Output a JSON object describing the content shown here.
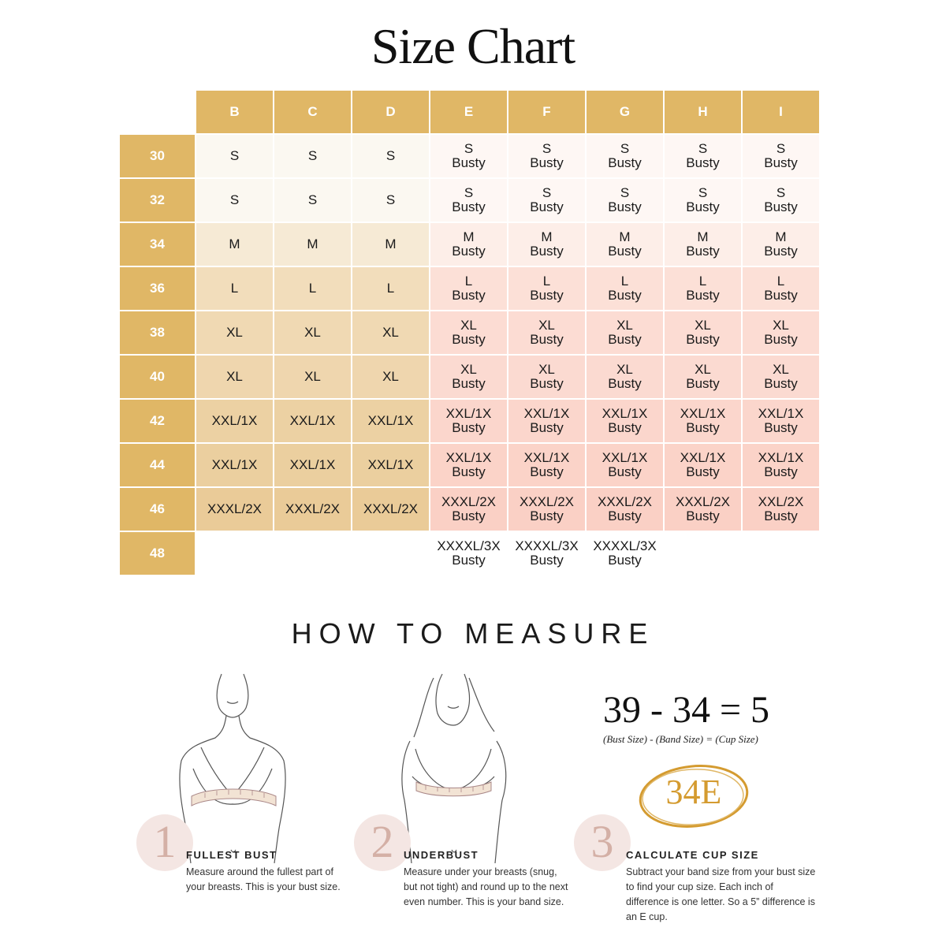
{
  "title": "Size Chart",
  "colors": {
    "header_gold": "#e0b766",
    "cream": [
      "#fbf8f1",
      "#fbf8f1",
      "#f6ead5",
      "#f2ddbb",
      "#f0d9b3",
      "#efd6ae",
      "#ecd1a3",
      "#ebcf9f",
      "#eacb98"
    ],
    "pink": [
      "#fef7f4",
      "#fef7f4",
      "#fdeee8",
      "#fce0d7",
      "#fcdcd3",
      "#fbdad1",
      "#fbd6cc",
      "#fbd3c8",
      "#fad0c5"
    ],
    "step_circle": "#f4e6e3",
    "badge": "#d49b30"
  },
  "columns": [
    "B",
    "C",
    "D",
    "E",
    "F",
    "G",
    "H",
    "I"
  ],
  "rows": [
    {
      "band": "30",
      "cells": [
        "S",
        "S",
        "S",
        "S|Busty",
        "S|Busty",
        "S|Busty",
        "S|Busty",
        "S|Busty"
      ]
    },
    {
      "band": "32",
      "cells": [
        "S",
        "S",
        "S",
        "S|Busty",
        "S|Busty",
        "S|Busty",
        "S|Busty",
        "S|Busty"
      ]
    },
    {
      "band": "34",
      "cells": [
        "M",
        "M",
        "M",
        "M|Busty",
        "M|Busty",
        "M|Busty",
        "M|Busty",
        "M|Busty"
      ]
    },
    {
      "band": "36",
      "cells": [
        "L",
        "L",
        "L",
        "L|Busty",
        "L|Busty",
        "L|Busty",
        "L|Busty",
        "L|Busty"
      ]
    },
    {
      "band": "38",
      "cells": [
        "XL",
        "XL",
        "XL",
        "XL|Busty",
        "XL|Busty",
        "XL|Busty",
        "XL|Busty",
        "XL|Busty"
      ]
    },
    {
      "band": "40",
      "cells": [
        "XL",
        "XL",
        "XL",
        "XL|Busty",
        "XL|Busty",
        "XL|Busty",
        "XL|Busty",
        "XL|Busty"
      ]
    },
    {
      "band": "42",
      "cells": [
        "XXL/1X",
        "XXL/1X",
        "XXL/1X",
        "XXL/1X|Busty",
        "XXL/1X|Busty",
        "XXL/1X|Busty",
        "XXL/1X|Busty",
        "XXL/1X|Busty"
      ]
    },
    {
      "band": "44",
      "cells": [
        "XXL/1X",
        "XXL/1X",
        "XXL/1X",
        "XXL/1X|Busty",
        "XXL/1X|Busty",
        "XXL/1X|Busty",
        "XXL/1X|Busty",
        "XXL/1X|Busty"
      ]
    },
    {
      "band": "46",
      "cells": [
        "XXXL/2X",
        "XXXL/2X",
        "XXXL/2X",
        "XXXL/2X|Busty",
        "XXXL/2X|Busty",
        "XXXL/2X|Busty",
        "XXXL/2X|Busty",
        "XXL/2X|Busty"
      ]
    },
    {
      "band": "48",
      "cells": [
        "",
        "",
        "",
        "XXXXL/3X|Busty",
        "XXXXL/3X|Busty",
        "XXXXL/3X|Busty",
        "",
        ""
      ]
    }
  ],
  "how_to": {
    "heading": "HOW TO MEASURE",
    "steps": [
      {
        "num": "1",
        "title": "FULLEST BUST",
        "text": "Measure around the fullest part of your breasts. This is your bust size."
      },
      {
        "num": "2",
        "title": "UNDERBUST",
        "text": "Measure under your breasts (snug, but not tight) and round up to the next even number. This is your band size."
      },
      {
        "num": "3",
        "title": "CALCULATE CUP SIZE",
        "text": "Subtract your band size from your bust size to find your cup size. Each inch of difference is one letter. So a 5” difference is an E cup."
      }
    ],
    "equation": "39 - 34 = 5",
    "equation_labels": "(Bust Size)  -  (Band Size) = (Cup Size)",
    "badge": "34E"
  },
  "icons": [
    "bust-illustration-icon",
    "underbust-illustration-icon",
    "circled-size-badge-icon"
  ]
}
